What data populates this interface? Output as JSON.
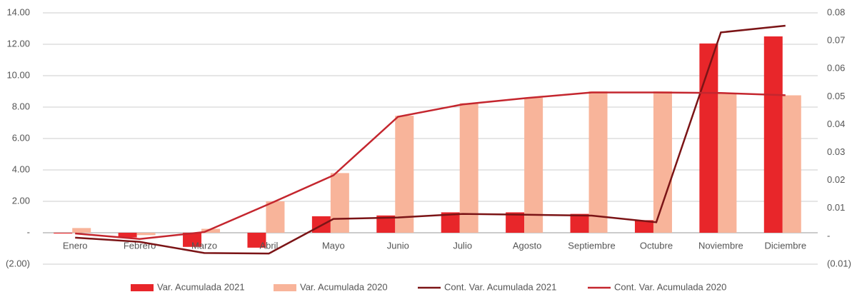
{
  "chart_data": {
    "type": "bar",
    "categories": [
      "Enero",
      "Febrero",
      "Marzo",
      "Abril",
      "Mayo",
      "Junio",
      "Julio",
      "Agosto",
      "Septiembre",
      "Octubre",
      "Noviembre",
      "Diciembre"
    ],
    "series": [
      {
        "name": "Var. Acumulada 2021",
        "type": "bar",
        "color": "#e8262a",
        "values": [
          -0.05,
          -0.3,
          -0.9,
          -0.95,
          1.05,
          1.1,
          1.3,
          1.3,
          1.2,
          0.8,
          12.05,
          12.5
        ]
      },
      {
        "name": "Var. Acumulada 2020",
        "type": "bar",
        "color": "#f8b49a",
        "values": [
          0.3,
          -0.15,
          0.25,
          2.0,
          3.8,
          7.45,
          8.25,
          8.6,
          9.0,
          9.0,
          8.9,
          8.75
        ]
      },
      {
        "name": "Cont. Var. Acumulada 2021",
        "type": "line",
        "axis": "y2",
        "color": "#7b1416",
        "values": [
          -0.0005,
          -0.002,
          -0.006,
          -0.0062,
          0.0062,
          0.0067,
          0.008,
          0.0077,
          0.0074,
          0.005,
          0.073,
          0.0754
        ]
      },
      {
        "name": "Cont. Var. Acumulada 2020",
        "type": "line",
        "axis": "y2",
        "color": "#c4262e",
        "values": [
          0.001,
          -0.001,
          0.0015,
          0.0115,
          0.0218,
          0.0428,
          0.0472,
          0.0495,
          0.0515,
          0.0515,
          0.0513,
          0.0505
        ]
      }
    ],
    "ylim": [
      -2,
      14
    ],
    "yticks": [
      {
        "value": -2,
        "label": "(2.00)"
      },
      {
        "value": 0,
        "label": "-"
      },
      {
        "value": 2,
        "label": "2.00"
      },
      {
        "value": 4,
        "label": "4.00"
      },
      {
        "value": 6,
        "label": "6.00"
      },
      {
        "value": 8,
        "label": "8.00"
      },
      {
        "value": 10,
        "label": "10.00"
      },
      {
        "value": 12,
        "label": "12.00"
      },
      {
        "value": 14,
        "label": "14.00"
      }
    ],
    "y2lim": [
      -0.01,
      0.08
    ],
    "y2ticks": [
      {
        "value": -0.01,
        "label": "(0.01)"
      },
      {
        "value": 0,
        "label": "-"
      },
      0.01,
      0.02,
      0.03,
      0.04,
      0.05,
      0.06,
      0.07,
      0.08
    ],
    "grid": true,
    "legend": "bottom"
  }
}
